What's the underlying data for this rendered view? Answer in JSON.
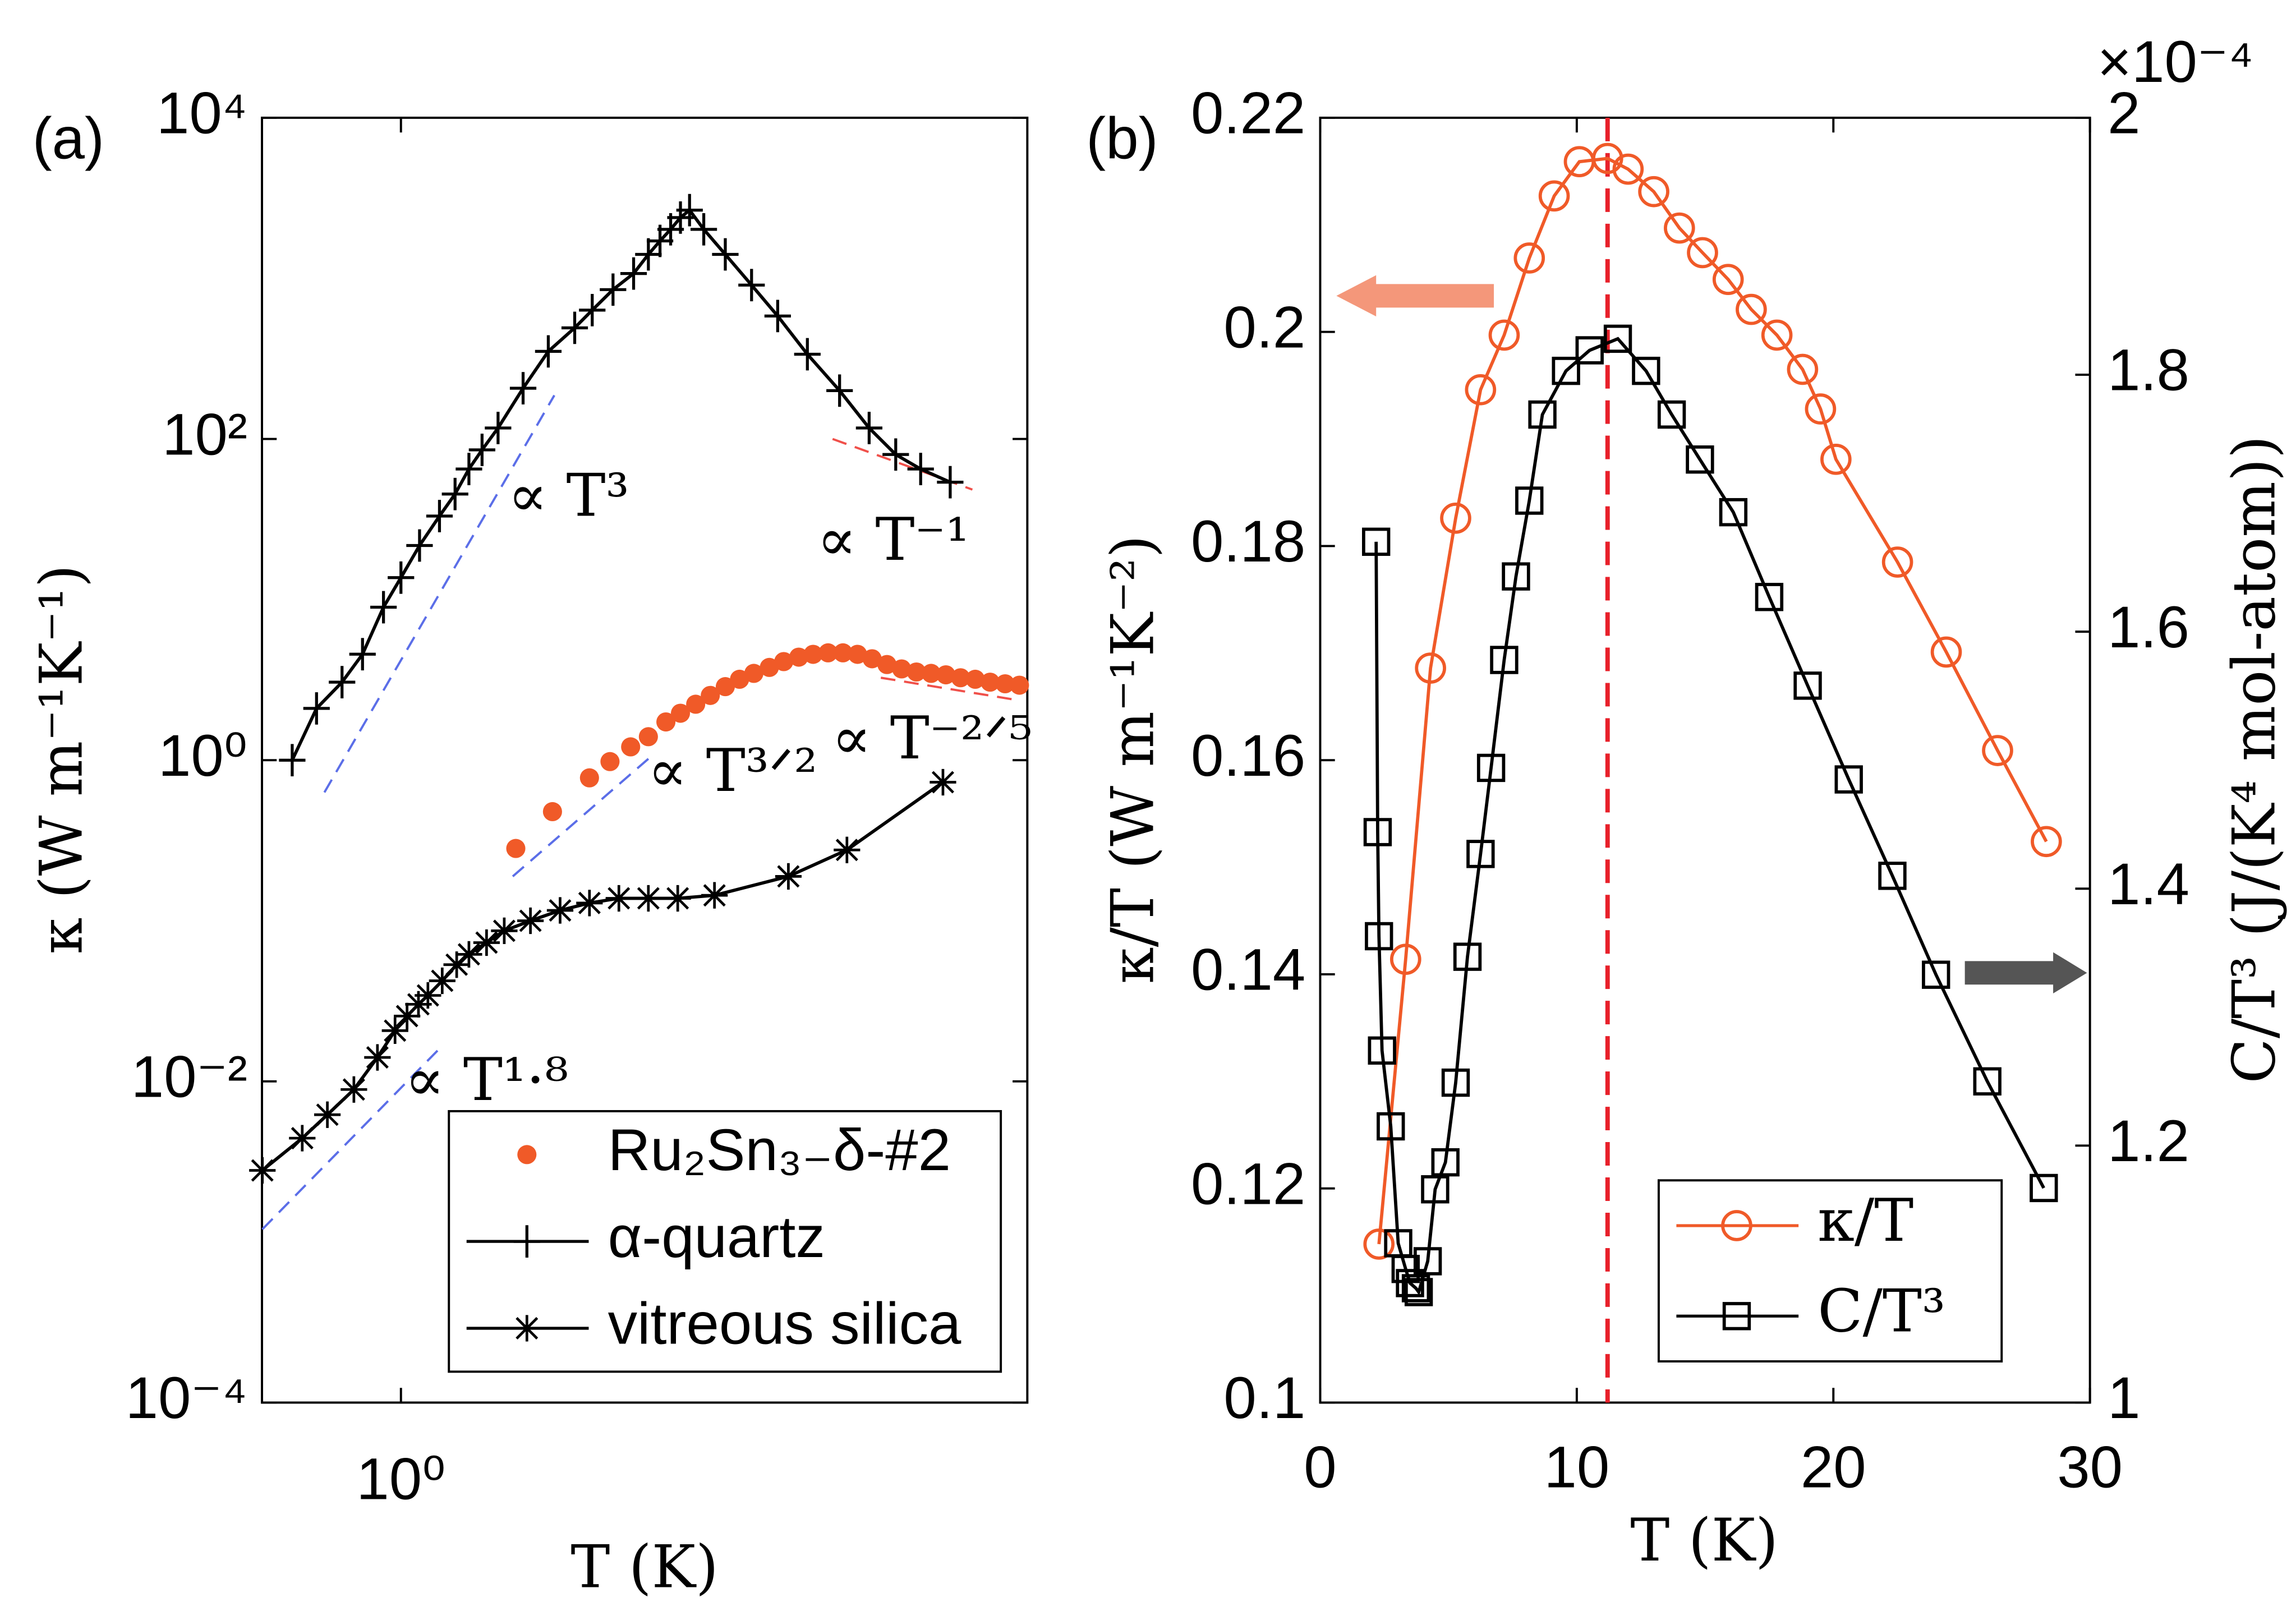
{
  "chart_data": [
    {
      "type": "line",
      "panel_label": "(a)",
      "xlabel": "T (K)",
      "ylabel": "κ (W m⁻¹K⁻¹)",
      "xscale": "log",
      "yscale": "log",
      "xlim": [
        0.33,
        148
      ],
      "ylim": [
        0.0001,
        10000
      ],
      "xticks": [
        {
          "value": 1,
          "label": "10⁰"
        }
      ],
      "yticks": [
        {
          "value": 0.0001,
          "label": "10⁻⁴"
        },
        {
          "value": 0.01,
          "label": "10⁻²"
        },
        {
          "value": 1,
          "label": "10⁰"
        },
        {
          "value": 100,
          "label": "10²"
        },
        {
          "value": 10000,
          "label": "10⁴"
        }
      ],
      "legend": "lower right",
      "series": [
        {
          "name": "Ru₂Sn₃₋δ-#2",
          "color": "#f05a28",
          "marker": "dot",
          "line": false,
          "x": [
            2.5,
            3.35,
            4.5,
            5.3,
            6.25,
            7.2,
            8.28,
            9.3,
            10.5,
            11.8,
            13.3,
            14.9,
            16.7,
            18.9,
            21.2,
            23.9,
            26.8,
            30.2,
            34,
            38.2,
            42.9,
            48.3,
            54.3,
            61.1,
            68.7,
            77.3,
            86.9,
            97.7,
            110,
            124,
            139
          ],
          "values": [
            0.282,
            0.478,
            0.776,
            0.98,
            1.21,
            1.4,
            1.73,
            1.96,
            2.23,
            2.53,
            2.87,
            3.19,
            3.47,
            3.78,
            4.11,
            4.38,
            4.56,
            4.66,
            4.66,
            4.56,
            4.28,
            3.94,
            3.7,
            3.54,
            3.47,
            3.4,
            3.26,
            3.19,
            3.06,
            2.99,
            2.93
          ]
        },
        {
          "name": "α-quartz",
          "color": "#000000",
          "marker": "plus",
          "line": true,
          "x": [
            0.42,
            0.51,
            0.625,
            0.736,
            0.87,
            1.0,
            1.16,
            1.36,
            1.54,
            1.72,
            1.91,
            2.17,
            2.65,
            3.24,
            4.0,
            4.6,
            5.43,
            6.4,
            7.2,
            7.9,
            8.6,
            9.3,
            10,
            11.2,
            13.3,
            16.4,
            20.2,
            25.6,
            33.1,
            41.9,
            51.8,
            63.2,
            80
          ],
          "values": [
            1,
            2.1,
            3.06,
            4.57,
            8.96,
            13.7,
            21.7,
            33.1,
            45.4,
            65,
            85.5,
            117,
            207,
            351,
            492,
            634,
            851,
            1072,
            1410,
            1710,
            2020,
            2390,
            2660,
            2020,
            1410,
            908,
            583,
            337,
            200,
            117,
            80,
            65,
            53.8
          ]
        },
        {
          "name": "vitreous silica",
          "color": "#000000",
          "marker": "star",
          "line": true,
          "x": [
            0.331,
            0.455,
            0.556,
            0.687,
            0.829,
            0.954,
            1.05,
            1.15,
            1.24,
            1.39,
            1.56,
            1.72,
            1.98,
            2.28,
            2.81,
            3.56,
            4.5,
            5.69,
            7.2,
            9.1,
            12.2,
            22,
            35.1,
            75.5
          ],
          "values": [
            0.00279,
            0.00443,
            0.0062,
            0.0089,
            0.0141,
            0.0207,
            0.0255,
            0.0302,
            0.0343,
            0.0423,
            0.0533,
            0.0618,
            0.0731,
            0.0866,
            0.1,
            0.116,
            0.129,
            0.138,
            0.138,
            0.138,
            0.144,
            0.189,
            0.276,
            0.729
          ]
        }
      ],
      "guides": [
        {
          "color": "#5b6ee8",
          "x": [
            0.543,
            3.4
          ],
          "y": [
            0.63,
            187
          ]
        },
        {
          "color": "#f0504a",
          "x": [
            31.3,
            95.5
          ],
          "y": [
            100,
            48.4
          ]
        },
        {
          "color": "#5b6ee8",
          "x": [
            2.44,
            7.2
          ],
          "y": [
            0.189,
            1.02
          ]
        },
        {
          "color": "#f0504a",
          "x": [
            46,
            136
          ],
          "y": [
            3.26,
            2.37
          ]
        },
        {
          "color": "#5b6ee8",
          "x": [
            0.331,
            1.36
          ],
          "y": [
            0.0012,
            0.016
          ]
        }
      ],
      "annotations": [
        {
          "text": "∝ T³",
          "color": "#2a2ae0"
        },
        {
          "text": "∝ T⁻¹",
          "color": "#f0504a"
        },
        {
          "text": "∝ T³ᐟ²",
          "color": "#2a2ae0"
        },
        {
          "text": "∝ T⁻²ᐟ⁵",
          "color": "#f0504a"
        },
        {
          "text": "∝ T¹·⁸",
          "color": "#2a2ae0"
        }
      ]
    },
    {
      "type": "line",
      "panel_label": "(b)",
      "xlabel": "T (K)",
      "ylabel": "κ/T (W m⁻¹K⁻²)",
      "y2label": "C/T³ (J/(K⁴ mol-atom))",
      "y2_multiplier": "×10⁻⁴",
      "xlim": [
        0,
        30
      ],
      "ylim": [
        0.1,
        0.22
      ],
      "y2lim": [
        1,
        2
      ],
      "xticks": [
        0,
        10,
        20,
        30
      ],
      "yticks": [
        0.1,
        0.12,
        0.14,
        0.16,
        0.18,
        0.2,
        0.22
      ],
      "y2ticks": [
        1,
        1.2,
        1.4,
        1.6,
        1.8,
        2
      ],
      "vline": 11.2,
      "vline_color": "#e8202a",
      "legend": "lower right",
      "series": [
        {
          "name": "κ/T",
          "color": "#f05a28",
          "marker": "circle",
          "line": true,
          "x": [
            2.29,
            3.33,
            4.3,
            5.28,
            6.25,
            7.17,
            8.15,
            9.12,
            10.1,
            11.2,
            12.0,
            13.0,
            14.0,
            14.9,
            15.9,
            16.8,
            17.8,
            18.8,
            19.5,
            20.1,
            22.5,
            24.4,
            26.4,
            28.3
          ],
          "values": [
            0.1148,
            0.1414,
            0.1686,
            0.1826,
            0.1946,
            0.1997,
            0.2069,
            0.2127,
            0.2159,
            0.2162,
            0.2152,
            0.2131,
            0.2097,
            0.2074,
            0.2049,
            0.2021,
            0.1997,
            0.1965,
            0.1928,
            0.1881,
            0.1785,
            0.1701,
            0.1609,
            0.1524
          ]
        },
        {
          "name": "C/T³",
          "color": "#000000",
          "marker": "square",
          "line": true,
          "axis": "y2",
          "x": [
            2.18,
            2.24,
            2.29,
            2.41,
            2.75,
            3.04,
            3.33,
            3.5,
            3.73,
            3.84,
            4.19,
            4.48,
            4.88,
            5.28,
            5.74,
            6.25,
            6.66,
            7.17,
            7.63,
            8.15,
            8.66,
            9.58,
            10.5,
            11.6,
            12.7,
            13.7,
            14.8,
            16.1,
            17.5,
            19.0,
            20.6,
            22.3,
            24.0,
            26.0,
            28.2
          ],
          "values": [
            1.67,
            1.444,
            1.363,
            1.274,
            1.215,
            1.124,
            1.104,
            1.093,
            1.089,
            1.086,
            1.11,
            1.166,
            1.187,
            1.249,
            1.347,
            1.427,
            1.494,
            1.578,
            1.643,
            1.702,
            1.769,
            1.803,
            1.819,
            1.828,
            1.803,
            1.769,
            1.734,
            1.693,
            1.627,
            1.558,
            1.485,
            1.41,
            1.333,
            1.25,
            1.167
          ]
        }
      ]
    }
  ]
}
